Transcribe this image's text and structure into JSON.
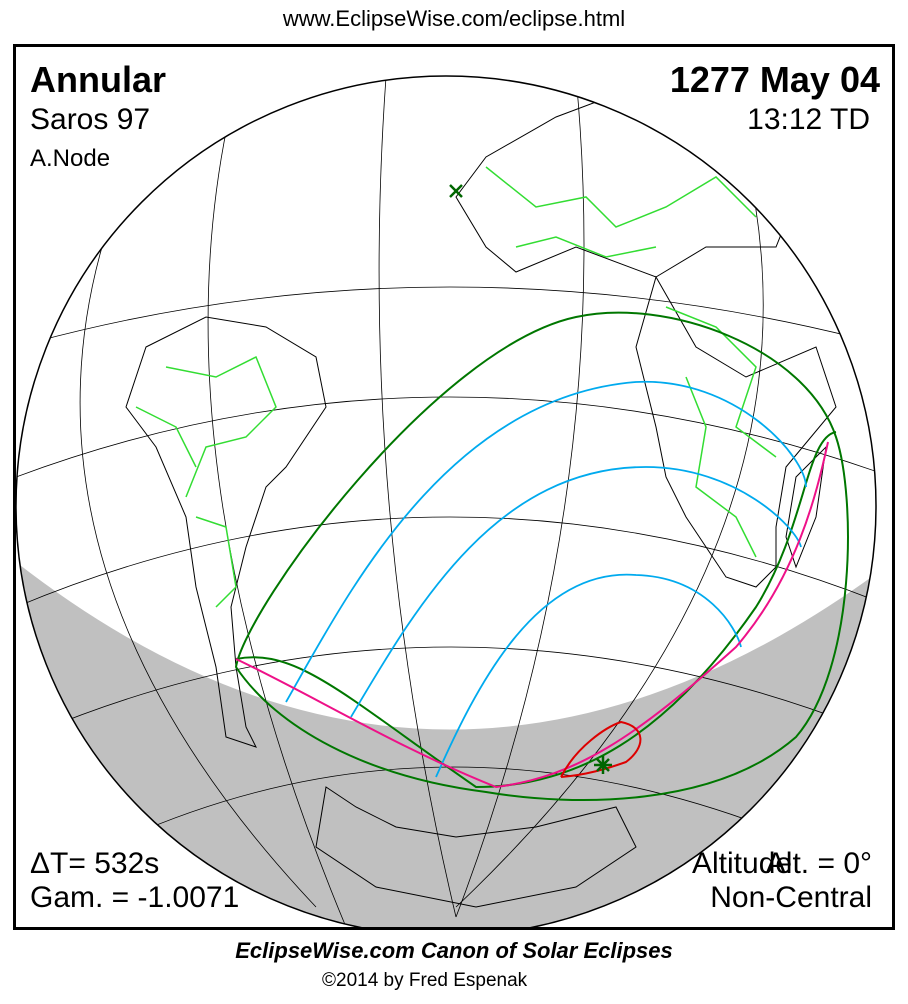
{
  "url": "www.EclipseWise.com/eclipse.html",
  "eclipse": {
    "type": "Annular",
    "saros": "Saros  97",
    "node": "A.Node",
    "date": "1277 May 04",
    "time": "13:12 TD",
    "delta_t": "ΔT=    532s",
    "gamma": "Gam. = -1.0071",
    "altitude_label_overlap": "Altitude",
    "altitude": "Alt. = 0°",
    "centrality": "Non-Central"
  },
  "footer": {
    "title": "EclipseWise.com Canon of Solar Eclipses",
    "copyright": "©2014 by Fred Espenak"
  },
  "colors": {
    "land_borders": "#33dd33",
    "penumbral_limits": "#007700",
    "magnitude_lines": "#00aaee",
    "rise_set_curve": "#ee1188",
    "max_eclipse_curve": "#dd0000",
    "night_shading": "#c0c0c0"
  }
}
